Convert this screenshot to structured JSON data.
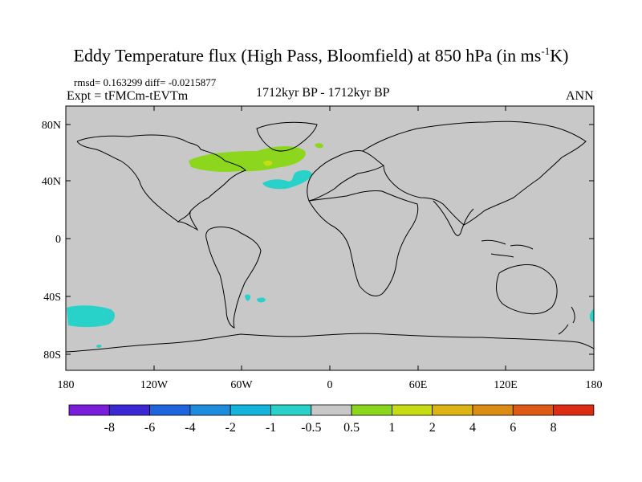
{
  "title": {
    "main": "Eddy Temperature flux (High Pass, Bloomfield) at 850 hPa (in ms",
    "superscript": "-1",
    "tail": "K)"
  },
  "stats_line": "rmsd= 0.163299 diff= -0.0215877",
  "experiment": "Expt = tFMCm-tEVTm",
  "period": "1712kyr BP - 1712kyr BP",
  "season": "ANN",
  "map": {
    "ocean_land_fill": "#c8c8c8",
    "coastline_color": "#000000",
    "y_ticks": [
      "80N",
      "40N",
      "0",
      "40S",
      "80S"
    ],
    "x_ticks": [
      "180",
      "120W",
      "60W",
      "0",
      "60E",
      "120E",
      "180"
    ],
    "features": [
      {
        "name": "north-atlantic-positive-anomaly",
        "color": "#8cd71e"
      },
      {
        "name": "north-atlantic-core",
        "color": "#c8dc14"
      },
      {
        "name": "greenland-positive-anomaly",
        "color": "#8cd71e"
      },
      {
        "name": "north-atlantic-negative-anomaly",
        "color": "#28d2c8"
      },
      {
        "name": "south-pacific-negative-anomaly",
        "color": "#28d2c8"
      },
      {
        "name": "south-atlantic-negative-anomaly",
        "color": "#28d2c8"
      },
      {
        "name": "southern-indian-negative-anomaly",
        "color": "#28d2c8"
      }
    ]
  },
  "colorbar": {
    "colors": [
      "#7a1edb",
      "#3c28d2",
      "#1e64dc",
      "#1e8cdc",
      "#14b4dc",
      "#28d2c8",
      "#c8c8c8",
      "#8cd71e",
      "#c8dc14",
      "#dcb414",
      "#dc8c14",
      "#dc5a14",
      "#dc2d14"
    ],
    "labels": [
      "-8",
      "-6",
      "-4",
      "-2",
      "-1",
      "-0.5",
      "0.5",
      "1",
      "2",
      "4",
      "6",
      "8"
    ]
  }
}
